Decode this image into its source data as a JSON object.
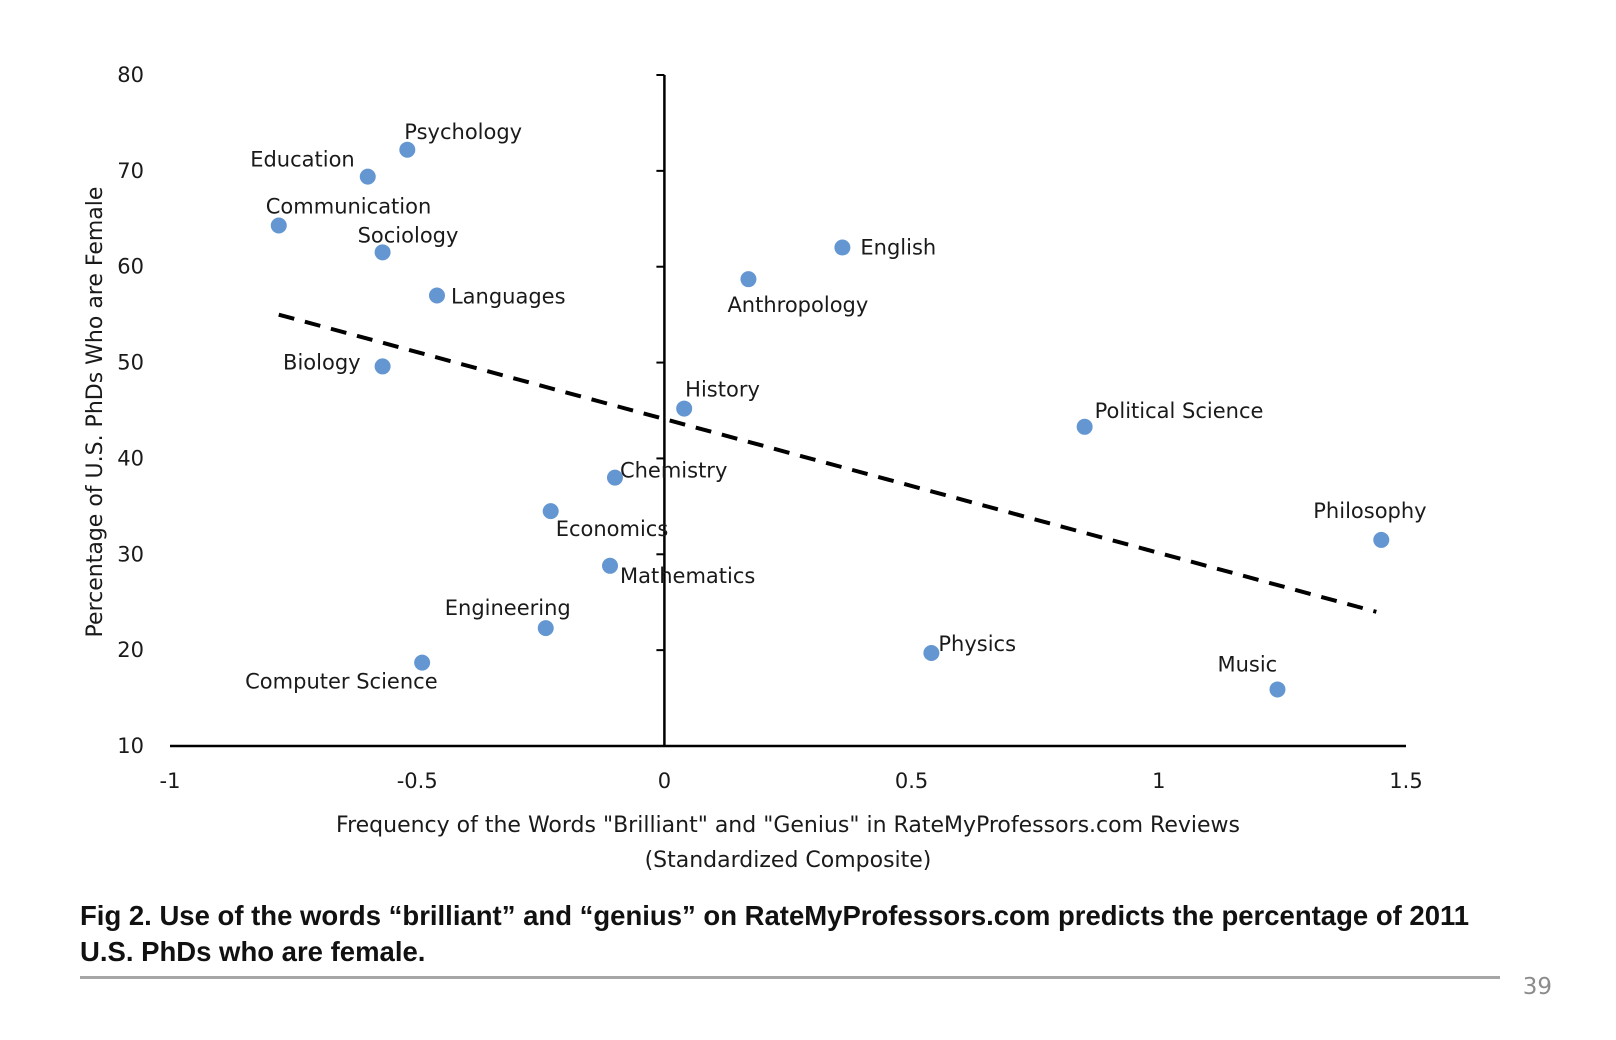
{
  "chart_data": {
    "type": "scatter",
    "xlabel_lines": [
      "Frequency of the Words \"Brilliant\" and \"Genius\" in RateMyProfessors.com Reviews",
      "(Standardized Composite)"
    ],
    "ylabel": "Percentage of U.S. PhDs Who are Female",
    "xlim": [
      -1,
      1.5
    ],
    "ylim": [
      10,
      80
    ],
    "x_ticks": [
      -1,
      -0.5,
      0,
      0.5,
      1,
      1.5
    ],
    "x_tick_labels": [
      "-1",
      "-0.5",
      "0",
      "0.5",
      "1",
      "1.5"
    ],
    "y_ticks": [
      10,
      20,
      30,
      40,
      50,
      60,
      70,
      80
    ],
    "y_tick_labels": [
      "10",
      "20",
      "30",
      "40",
      "50",
      "60",
      "70",
      "80"
    ],
    "grid": false,
    "legend": "none",
    "points": [
      {
        "label": "Psychology",
        "x": -0.52,
        "y": 72.2
      },
      {
        "label": "Education",
        "x": -0.6,
        "y": 69.4
      },
      {
        "label": "Communication",
        "x": -0.78,
        "y": 64.3
      },
      {
        "label": "Sociology",
        "x": -0.57,
        "y": 61.5
      },
      {
        "label": "Languages",
        "x": -0.46,
        "y": 57.0
      },
      {
        "label": "Biology",
        "x": -0.57,
        "y": 49.6
      },
      {
        "label": "English",
        "x": 0.36,
        "y": 62.0
      },
      {
        "label": "Anthropology",
        "x": 0.17,
        "y": 58.7
      },
      {
        "label": "History",
        "x": 0.04,
        "y": 45.2
      },
      {
        "label": "Political Science",
        "x": 0.85,
        "y": 43.3
      },
      {
        "label": "Chemistry",
        "x": -0.1,
        "y": 38.0
      },
      {
        "label": "Economics",
        "x": -0.23,
        "y": 34.5
      },
      {
        "label": "Mathematics",
        "x": -0.11,
        "y": 28.8
      },
      {
        "label": "Engineering",
        "x": -0.24,
        "y": 22.3
      },
      {
        "label": "Computer Science",
        "x": -0.49,
        "y": 18.7
      },
      {
        "label": "Physics",
        "x": 0.54,
        "y": 19.7
      },
      {
        "label": "Philosophy",
        "x": 1.45,
        "y": 31.5
      },
      {
        "label": "Music",
        "x": 1.24,
        "y": 15.9
      }
    ],
    "trendline": {
      "x": [
        -0.78,
        1.44
      ],
      "y": [
        55.0,
        24.0
      ]
    },
    "colors": {
      "marker": "#6496d2",
      "axis": "#000000",
      "trendline": "#000000"
    }
  },
  "caption": "Fig 2. Use of the words “brilliant” and “genius” on RateMyProfessors.com predicts the percentage of 2011 U.S. PhDs who are female.",
  "page_number": "39"
}
